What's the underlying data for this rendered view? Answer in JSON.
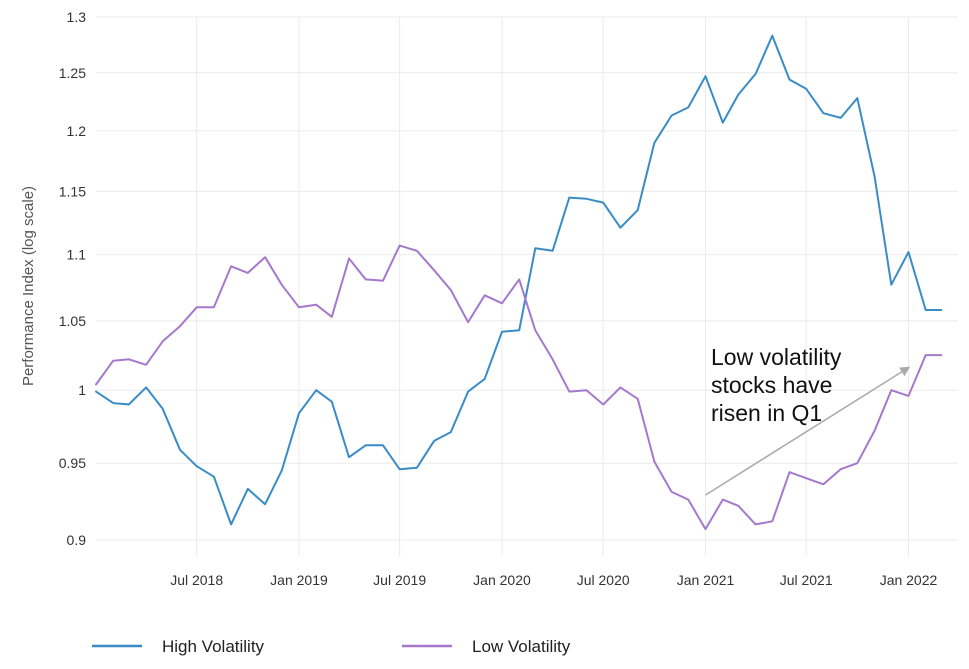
{
  "chart_data": {
    "type": "line",
    "title": "",
    "xlabel": "",
    "ylabel": "Performance Index (log scale)",
    "log_scale_y": true,
    "grid": true,
    "legend_position": "bottom-left",
    "xlim": [
      "2018-01-01",
      "2022-03-31"
    ],
    "ylim": [
      0.89,
      1.3
    ],
    "y_ticks": [
      "0.9",
      "0.95",
      "1",
      "1.05",
      "1.1",
      "1.15",
      "1.2",
      "1.25",
      "1.3"
    ],
    "x_ticks": [
      {
        "label": "Jul 2018",
        "date": "2018-07-01"
      },
      {
        "label": "Jan 2019",
        "date": "2019-01-01"
      },
      {
        "label": "Jul 2019",
        "date": "2019-07-01"
      },
      {
        "label": "Jan 2020",
        "date": "2020-01-01"
      },
      {
        "label": "Jul 2020",
        "date": "2020-07-01"
      },
      {
        "label": "Jan 2021",
        "date": "2021-01-01"
      },
      {
        "label": "Jul 2021",
        "date": "2021-07-01"
      },
      {
        "label": "Jan 2022",
        "date": "2022-01-01"
      }
    ],
    "dates": [
      "2018-01-01",
      "2018-02-01",
      "2018-03-01",
      "2018-04-01",
      "2018-05-01",
      "2018-06-01",
      "2018-07-01",
      "2018-08-01",
      "2018-09-01",
      "2018-10-01",
      "2018-11-01",
      "2018-12-01",
      "2019-01-01",
      "2019-02-01",
      "2019-03-01",
      "2019-04-01",
      "2019-05-01",
      "2019-06-01",
      "2019-07-01",
      "2019-08-01",
      "2019-09-01",
      "2019-10-01",
      "2019-11-01",
      "2019-12-01",
      "2020-01-01",
      "2020-02-01",
      "2020-03-01",
      "2020-04-01",
      "2020-05-01",
      "2020-06-01",
      "2020-07-01",
      "2020-08-01",
      "2020-09-01",
      "2020-10-01",
      "2020-11-01",
      "2020-12-01",
      "2021-01-01",
      "2021-02-01",
      "2021-03-01",
      "2021-04-01",
      "2021-05-01",
      "2021-06-01",
      "2021-07-01",
      "2021-08-01",
      "2021-09-01",
      "2021-10-01",
      "2021-11-01",
      "2021-12-01",
      "2022-01-01",
      "2022-02-01",
      "2022-03-01"
    ],
    "series": [
      {
        "name": "High Volatility",
        "color": "#3a8cc6",
        "values": [
          0.999,
          0.991,
          0.99,
          1.002,
          0.987,
          0.959,
          0.948,
          0.941,
          0.91,
          0.933,
          0.923,
          0.945,
          0.984,
          1.0,
          0.992,
          0.954,
          0.962,
          0.962,
          0.946,
          0.947,
          0.965,
          0.971,
          0.999,
          1.008,
          1.042,
          1.043,
          1.105,
          1.103,
          1.145,
          1.144,
          1.141,
          1.121,
          1.135,
          1.19,
          1.213,
          1.22,
          1.247,
          1.207,
          1.231,
          1.249,
          1.283,
          1.244,
          1.236,
          1.215,
          1.211,
          1.228,
          1.162,
          1.077,
          1.102,
          1.058,
          1.058
        ]
      },
      {
        "name": "Low Volatility",
        "color": "#a678cc",
        "values": [
          1.004,
          1.021,
          1.022,
          1.018,
          1.035,
          1.046,
          1.06,
          1.06,
          1.091,
          1.086,
          1.098,
          1.077,
          1.06,
          1.062,
          1.053,
          1.097,
          1.081,
          1.08,
          1.107,
          1.103,
          1.088,
          1.073,
          1.049,
          1.069,
          1.063,
          1.081,
          1.043,
          1.022,
          0.999,
          1.0,
          0.99,
          1.002,
          0.994,
          0.951,
          0.931,
          0.926,
          0.907,
          0.926,
          0.922,
          0.91,
          0.912,
          0.944,
          0.94,
          0.936,
          0.946,
          0.95,
          0.972,
          1.0,
          0.996,
          1.025,
          1.025
        ]
      }
    ],
    "annotation": {
      "text_lines": [
        "Low volatility",
        "stocks have",
        "risen in Q1"
      ],
      "arrow_from": {
        "date": "2021-01-01",
        "value": 0.929
      },
      "arrow_to": {
        "date": "2022-01-01",
        "value": 1.016
      }
    }
  }
}
